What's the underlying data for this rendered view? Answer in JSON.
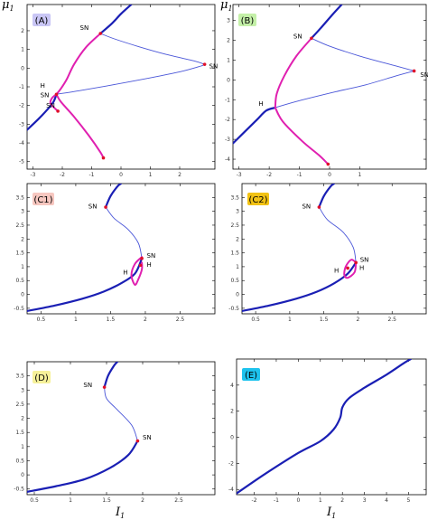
{
  "colors": {
    "stable": "#1a1fb4",
    "unstable": "#4a56d8",
    "oscillation": "#e020b0",
    "marker": "#e0102a",
    "frame": "#000000"
  },
  "figure": {
    "y_axis_label": "μ",
    "y_axis_subscript": "1",
    "x_axis_label": "I",
    "x_axis_subscript": "1"
  },
  "chart_data": [
    {
      "id": "A",
      "label": "(A)",
      "badge_color": "#c9c6f5",
      "type": "line",
      "xlim": [
        -3.2,
        3.2
      ],
      "ylim": [
        -5.4,
        3.4
      ],
      "xticks": [
        -3,
        -2,
        -1,
        0,
        1,
        2
      ],
      "yticks": [
        -5,
        -4,
        -3,
        -2,
        -1,
        0,
        1,
        2
      ],
      "series": [
        {
          "style": "stable",
          "points": [
            [
              -3.2,
              -3.3
            ],
            [
              -2.8,
              -2.7
            ],
            [
              -2.5,
              -2.2
            ],
            [
              -2.3,
              -1.8
            ],
            [
              -2.2,
              -1.4
            ]
          ]
        },
        {
          "style": "unstable",
          "points": [
            [
              -2.2,
              -1.4
            ],
            [
              -1.4,
              -1.2
            ],
            [
              -0.3,
              -0.9
            ],
            [
              0.9,
              -0.55
            ],
            [
              2.0,
              -0.2
            ],
            [
              2.7,
              0.1
            ],
            [
              2.85,
              0.2
            ]
          ]
        },
        {
          "style": "unstable",
          "points": [
            [
              2.85,
              0.2
            ],
            [
              2.5,
              0.38
            ],
            [
              1.5,
              0.75
            ],
            [
              0.6,
              1.15
            ],
            [
              -0.2,
              1.55
            ],
            [
              -0.7,
              1.85
            ]
          ]
        },
        {
          "style": "stable",
          "points": [
            [
              -0.7,
              1.85
            ],
            [
              -0.3,
              2.4
            ],
            [
              0.0,
              2.9
            ],
            [
              0.35,
              3.4
            ]
          ]
        },
        {
          "style": "oscillation",
          "points": [
            [
              -0.7,
              1.85
            ],
            [
              -1.2,
              1.1
            ],
            [
              -1.6,
              0.2
            ],
            [
              -1.85,
              -0.6
            ],
            [
              -2.05,
              -1.1
            ],
            [
              -2.2,
              -1.4
            ]
          ]
        },
        {
          "style": "oscillation",
          "points": [
            [
              -2.2,
              -1.4
            ],
            [
              -2.35,
              -1.6
            ],
            [
              -2.4,
              -1.9
            ],
            [
              -2.15,
              -2.3
            ]
          ]
        },
        {
          "style": "oscillation",
          "points": [
            [
              -2.2,
              -1.4
            ],
            [
              -2.05,
              -1.8
            ],
            [
              -1.6,
              -2.6
            ],
            [
              -1.1,
              -3.6
            ],
            [
              -0.7,
              -4.5
            ],
            [
              -0.6,
              -4.8
            ]
          ]
        }
      ],
      "markers": [
        [
          -0.7,
          1.85
        ],
        [
          2.85,
          0.2
        ],
        [
          -2.2,
          -1.4
        ],
        [
          -2.15,
          -2.3
        ],
        [
          -0.6,
          -4.8
        ]
      ],
      "annotations": [
        {
          "text": "SN",
          "x": -1.4,
          "y": 2.05
        },
        {
          "text": "SN",
          "x": 3.0,
          "y": 0.0
        },
        {
          "text": "H",
          "x": -2.75,
          "y": -1.05
        },
        {
          "text": "SN",
          "x": -2.75,
          "y": -1.55
        },
        {
          "text": "SN",
          "x": -2.55,
          "y": -2.1
        }
      ]
    },
    {
      "id": "B",
      "label": "(B)",
      "badge_color": "#c4f0a8",
      "type": "line",
      "xlim": [
        -3.2,
        3.2
      ],
      "ylim": [
        -4.5,
        3.8
      ],
      "xticks": [
        -3,
        -2,
        -1,
        0,
        1
      ],
      "yticks": [
        -4,
        -3,
        -2,
        -1,
        0,
        1,
        2,
        3
      ],
      "series": [
        {
          "style": "stable",
          "points": [
            [
              -3.2,
              -3.2
            ],
            [
              -2.8,
              -2.6
            ],
            [
              -2.4,
              -2.0
            ],
            [
              -2.1,
              -1.55
            ],
            [
              -1.8,
              -1.4
            ]
          ]
        },
        {
          "style": "unstable",
          "points": [
            [
              -1.8,
              -1.4
            ],
            [
              -1.0,
              -1.05
            ],
            [
              0.2,
              -0.6
            ],
            [
              1.2,
              -0.25
            ],
            [
              2.2,
              0.2
            ],
            [
              2.8,
              0.45
            ]
          ]
        },
        {
          "style": "unstable",
          "points": [
            [
              2.8,
              0.45
            ],
            [
              2.2,
              0.7
            ],
            [
              1.0,
              1.2
            ],
            [
              0.0,
              1.7
            ],
            [
              -0.6,
              2.1
            ]
          ]
        },
        {
          "style": "stable",
          "points": [
            [
              -0.6,
              2.1
            ],
            [
              -0.3,
              2.6
            ],
            [
              0.1,
              3.3
            ],
            [
              0.4,
              3.8
            ]
          ]
        },
        {
          "style": "oscillation",
          "points": [
            [
              -0.6,
              2.1
            ],
            [
              -1.1,
              1.2
            ],
            [
              -1.5,
              0.2
            ],
            [
              -1.75,
              -0.7
            ],
            [
              -1.8,
              -1.4
            ]
          ]
        },
        {
          "style": "oscillation",
          "points": [
            [
              -1.8,
              -1.4
            ],
            [
              -1.55,
              -2.1
            ],
            [
              -0.9,
              -3.1
            ],
            [
              -0.35,
              -3.8
            ],
            [
              -0.05,
              -4.25
            ]
          ]
        }
      ],
      "markers": [
        [
          -0.6,
          2.1
        ],
        [
          2.8,
          0.45
        ],
        [
          -0.05,
          -4.25
        ]
      ],
      "annotations": [
        {
          "text": "SN",
          "x": -1.2,
          "y": 2.1
        },
        {
          "text": "SN",
          "x": 3.0,
          "y": 0.15
        },
        {
          "text": "H",
          "x": -2.35,
          "y": -1.3
        }
      ]
    },
    {
      "id": "C1",
      "label": "(C1)",
      "badge_color": "#f7c7c0",
      "type": "line",
      "xlim": [
        0.3,
        3.0
      ],
      "ylim": [
        -0.7,
        4.0
      ],
      "xticks": [
        0.5,
        1,
        1.5,
        2,
        2.5
      ],
      "yticks": [
        -0.5,
        0,
        0.5,
        1,
        1.5,
        2,
        2.5,
        3,
        3.5
      ],
      "series": [
        {
          "style": "stable",
          "points": [
            [
              0.3,
              -0.6
            ],
            [
              0.7,
              -0.4
            ],
            [
              1.1,
              -0.15
            ],
            [
              1.4,
              0.1
            ],
            [
              1.65,
              0.4
            ],
            [
              1.85,
              0.75
            ],
            [
              1.95,
              1.3
            ]
          ]
        },
        {
          "style": "unstable",
          "points": [
            [
              1.95,
              1.3
            ],
            [
              1.9,
              1.85
            ],
            [
              1.75,
              2.35
            ],
            [
              1.55,
              2.75
            ],
            [
              1.43,
              3.15
            ]
          ]
        },
        {
          "style": "stable",
          "points": [
            [
              1.43,
              3.15
            ],
            [
              1.5,
              3.55
            ],
            [
              1.6,
              3.9
            ],
            [
              1.65,
              4.0
            ]
          ]
        },
        {
          "style": "oscillation",
          "points": [
            [
              1.95,
              1.35
            ],
            [
              1.85,
              1.1
            ],
            [
              1.8,
              0.7
            ],
            [
              1.85,
              0.35
            ],
            [
              1.9,
              0.55
            ],
            [
              1.95,
              0.9
            ],
            [
              1.95,
              1.15
            ]
          ]
        }
      ],
      "markers": [
        [
          1.43,
          3.15
        ],
        [
          1.95,
          1.3
        ],
        [
          1.93,
          1.05
        ]
      ],
      "annotations": [
        {
          "text": "SN",
          "x": 1.18,
          "y": 3.1
        },
        {
          "text": "SN",
          "x": 2.02,
          "y": 1.33
        },
        {
          "text": "H",
          "x": 2.02,
          "y": 1.0
        },
        {
          "text": "H",
          "x": 1.68,
          "y": 0.72
        }
      ]
    },
    {
      "id": "C2",
      "label": "(C2)",
      "badge_color": "#f2c214",
      "type": "line",
      "xlim": [
        0.3,
        3.0
      ],
      "ylim": [
        -0.7,
        4.0
      ],
      "xticks": [
        0.5,
        1,
        1.5,
        2,
        2.5
      ],
      "yticks": [
        -0.5,
        0,
        0.5,
        1,
        1.5,
        2,
        2.5,
        3,
        3.5
      ],
      "series": [
        {
          "style": "stable",
          "points": [
            [
              0.3,
              -0.6
            ],
            [
              0.7,
              -0.4
            ],
            [
              1.1,
              -0.15
            ],
            [
              1.4,
              0.1
            ],
            [
              1.65,
              0.4
            ],
            [
              1.85,
              0.75
            ],
            [
              1.97,
              1.15
            ]
          ]
        },
        {
          "style": "unstable",
          "points": [
            [
              1.97,
              1.15
            ],
            [
              1.93,
              1.7
            ],
            [
              1.78,
              2.25
            ],
            [
              1.55,
              2.7
            ],
            [
              1.43,
              3.15
            ]
          ]
        },
        {
          "style": "stable",
          "points": [
            [
              1.43,
              3.15
            ],
            [
              1.5,
              3.55
            ],
            [
              1.6,
              3.9
            ],
            [
              1.65,
              4.0
            ]
          ]
        },
        {
          "style": "oscillation",
          "points": [
            [
              1.97,
              1.15
            ],
            [
              1.9,
              1.25
            ],
            [
              1.82,
              1.0
            ],
            [
              1.8,
              0.7
            ],
            [
              1.85,
              0.6
            ],
            [
              1.95,
              0.8
            ],
            [
              1.97,
              1.15
            ]
          ]
        }
      ],
      "markers": [
        [
          1.43,
          3.15
        ],
        [
          1.97,
          1.15
        ],
        [
          1.85,
          0.95
        ]
      ],
      "annotations": [
        {
          "text": "SN",
          "x": 1.18,
          "y": 3.1
        },
        {
          "text": "SN",
          "x": 2.03,
          "y": 1.18
        },
        {
          "text": "H",
          "x": 2.02,
          "y": 0.88
        },
        {
          "text": "H",
          "x": 1.65,
          "y": 0.78
        }
      ]
    },
    {
      "id": "D",
      "label": "(D)",
      "badge_color": "#f6f19a",
      "type": "line",
      "xlim": [
        0.4,
        3.0
      ],
      "ylim": [
        -0.7,
        4.0
      ],
      "xticks": [
        0.5,
        1,
        1.5,
        2,
        2.5
      ],
      "yticks": [
        -0.5,
        0,
        0.5,
        1,
        1.5,
        2,
        2.5,
        3,
        3.5
      ],
      "series": [
        {
          "style": "stable",
          "points": [
            [
              0.4,
              -0.6
            ],
            [
              0.8,
              -0.4
            ],
            [
              1.2,
              -0.15
            ],
            [
              1.55,
              0.25
            ],
            [
              1.8,
              0.7
            ],
            [
              1.93,
              1.2
            ]
          ]
        },
        {
          "style": "unstable",
          "points": [
            [
              1.93,
              1.2
            ],
            [
              1.85,
              1.75
            ],
            [
              1.65,
              2.3
            ],
            [
              1.5,
              2.7
            ],
            [
              1.47,
              3.1
            ]
          ]
        },
        {
          "style": "stable",
          "points": [
            [
              1.47,
              3.1
            ],
            [
              1.52,
              3.5
            ],
            [
              1.6,
              3.85
            ],
            [
              1.65,
              4.0
            ]
          ]
        }
      ],
      "markers": [
        [
          1.47,
          3.1
        ],
        [
          1.93,
          1.2
        ]
      ],
      "annotations": [
        {
          "text": "SN",
          "x": 1.18,
          "y": 3.1
        },
        {
          "text": "SN",
          "x": 2.0,
          "y": 1.25
        }
      ]
    },
    {
      "id": "E",
      "label": "(E)",
      "badge_color": "#1ec3ee",
      "type": "line",
      "xlim": [
        -2.8,
        5.8
      ],
      "ylim": [
        -4.4,
        6.0
      ],
      "xticks": [
        -2,
        -1,
        0,
        1,
        2,
        3,
        4,
        5
      ],
      "yticks": [
        -4,
        -2,
        0,
        2,
        4
      ],
      "series": [
        {
          "style": "stable",
          "points": [
            [
              -2.8,
              -4.3
            ],
            [
              -1.5,
              -2.8
            ],
            [
              0.0,
              -1.2
            ],
            [
              1.0,
              -0.3
            ],
            [
              1.6,
              0.6
            ],
            [
              1.9,
              1.5
            ],
            [
              2.0,
              2.3
            ],
            [
              2.3,
              3.0
            ],
            [
              3.0,
              3.8
            ],
            [
              4.0,
              4.8
            ],
            [
              4.8,
              5.7
            ],
            [
              5.1,
              6.0
            ]
          ]
        }
      ],
      "markers": [],
      "annotations": []
    }
  ]
}
